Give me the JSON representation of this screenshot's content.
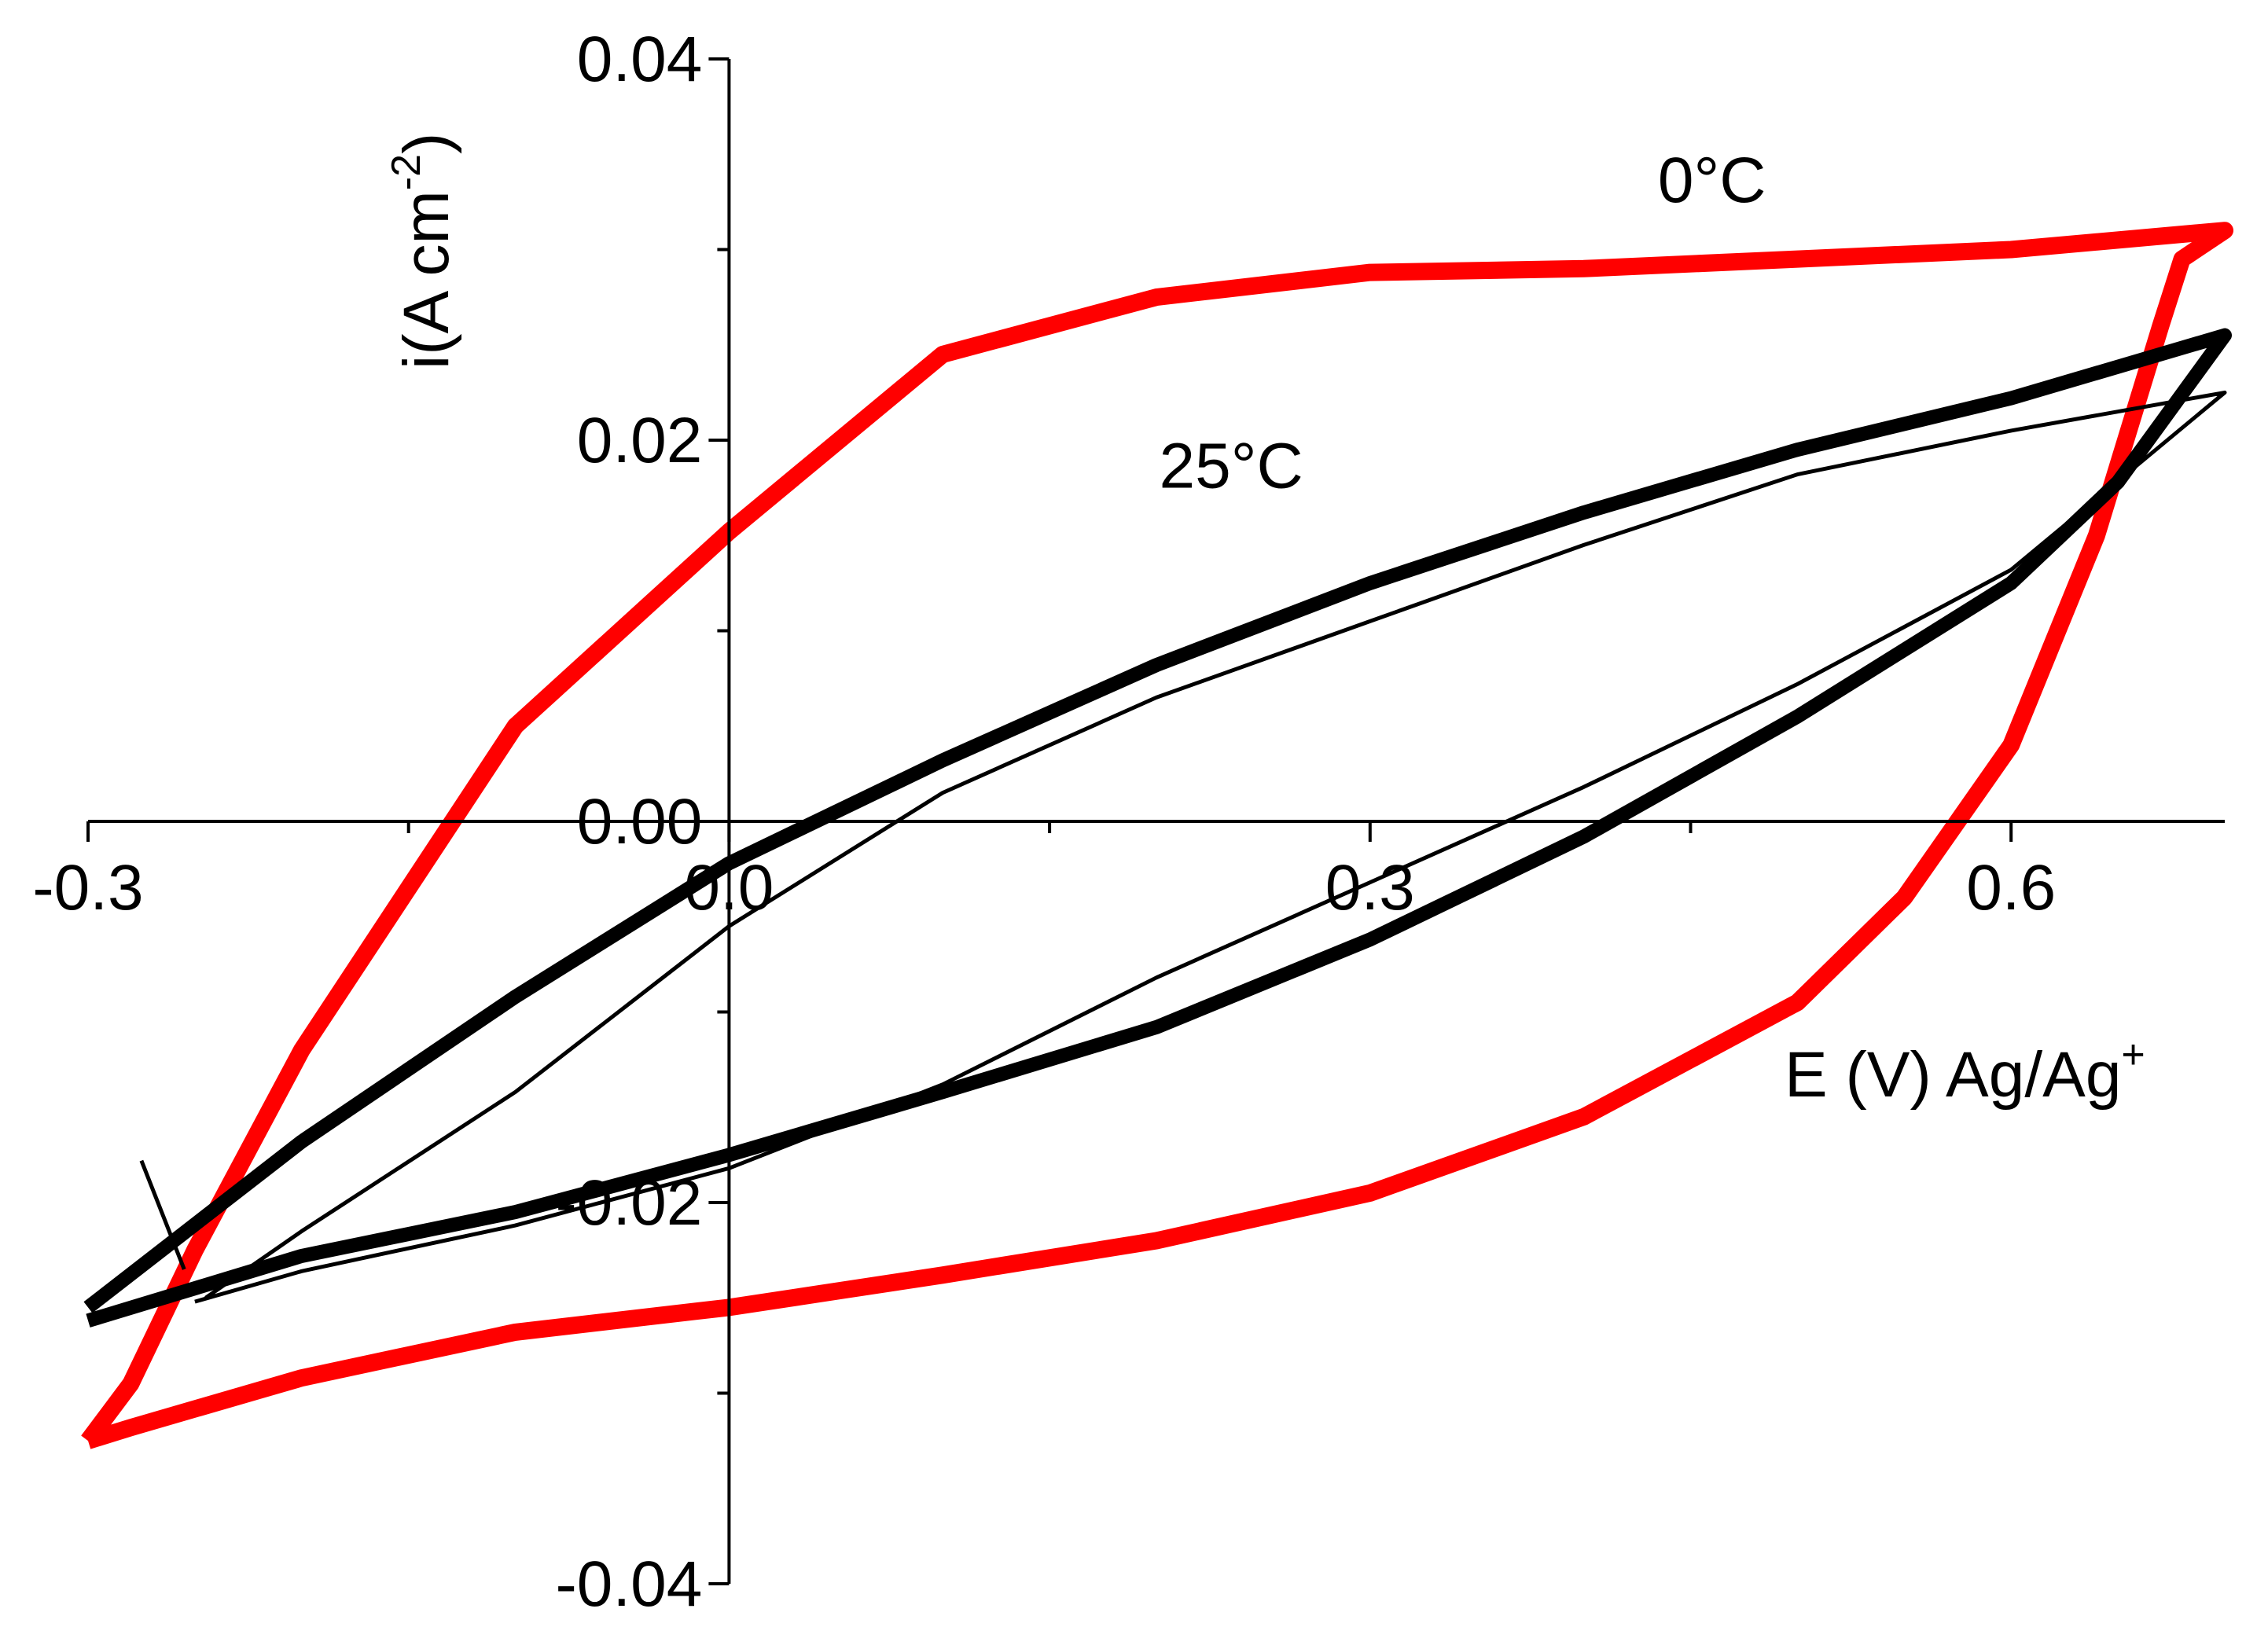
{
  "chart_data": {
    "type": "line",
    "xlabel": "E (V) Ag/Ag",
    "xlabel_sup": "+",
    "ylabel": "i(A cm",
    "ylabel_sup": "-2",
    "ylabel_close": ")",
    "xlim": [
      -0.3,
      0.7
    ],
    "ylim": [
      -0.04,
      0.04
    ],
    "xticks": [
      -0.3,
      0.0,
      0.3,
      0.6
    ],
    "xtick_labels": [
      "-0.3",
      "0.0",
      "0.3",
      "0.6"
    ],
    "yticks": [
      -0.04,
      -0.02,
      0.0,
      0.02,
      0.04
    ],
    "ytick_labels": [
      "-0.04",
      "-0.02",
      "0.00",
      "0.02",
      "0.04"
    ],
    "grid": false,
    "annotations": [
      {
        "text": "0°C",
        "x": 0.46,
        "y": 0.0325
      },
      {
        "text": "25°C",
        "x": 0.235,
        "y": 0.0175
      }
    ],
    "series": [
      {
        "color": "#ff0000",
        "width": 22,
        "points": [
          [
            -0.3,
            -0.0325
          ],
          [
            -0.28,
            -0.0318
          ],
          [
            -0.2,
            -0.0292
          ],
          [
            -0.1,
            -0.0268
          ],
          [
            0.0,
            -0.0255
          ],
          [
            0.1,
            -0.0238
          ],
          [
            0.2,
            -0.022
          ],
          [
            0.3,
            -0.0195
          ],
          [
            0.4,
            -0.0155
          ],
          [
            0.5,
            -0.0095
          ],
          [
            0.55,
            -0.004
          ],
          [
            0.6,
            0.004
          ],
          [
            0.64,
            0.015
          ],
          [
            0.67,
            0.026
          ],
          [
            0.68,
            0.0295
          ],
          [
            0.7,
            0.031
          ],
          [
            0.6,
            0.03
          ],
          [
            0.5,
            0.0295
          ],
          [
            0.4,
            0.029
          ],
          [
            0.3,
            0.0288
          ],
          [
            0.2,
            0.0275
          ],
          [
            0.1,
            0.0245
          ],
          [
            0.0,
            0.0152
          ],
          [
            -0.1,
            0.005
          ],
          [
            -0.2,
            -0.012
          ],
          [
            -0.25,
            -0.0225
          ],
          [
            -0.28,
            -0.0295
          ],
          [
            -0.3,
            -0.0325
          ]
        ]
      },
      {
        "color": "#000000",
        "width": 18,
        "points": [
          [
            -0.3,
            -0.0262
          ],
          [
            -0.25,
            -0.0245
          ],
          [
            -0.2,
            -0.0228
          ],
          [
            -0.1,
            -0.0205
          ],
          [
            0.0,
            -0.0175
          ],
          [
            0.1,
            -0.0142
          ],
          [
            0.2,
            -0.0108
          ],
          [
            0.3,
            -0.0062
          ],
          [
            0.4,
            -0.0008
          ],
          [
            0.5,
            0.0055
          ],
          [
            0.6,
            0.0125
          ],
          [
            0.65,
            0.0178
          ],
          [
            0.7,
            0.0255
          ],
          [
            0.6,
            0.0222
          ],
          [
            0.5,
            0.0195
          ],
          [
            0.4,
            0.0162
          ],
          [
            0.3,
            0.0125
          ],
          [
            0.2,
            0.0082
          ],
          [
            0.1,
            0.0032
          ],
          [
            0.0,
            -0.0022
          ],
          [
            -0.1,
            -0.0092
          ],
          [
            -0.2,
            -0.0168
          ],
          [
            -0.3,
            -0.0255
          ]
        ]
      },
      {
        "color": "#000000",
        "width": 5,
        "points": [
          [
            -0.245,
            -0.025
          ],
          [
            -0.2,
            -0.0215
          ],
          [
            -0.1,
            -0.0142
          ],
          [
            0.0,
            -0.0055
          ],
          [
            0.1,
            0.0015
          ],
          [
            0.2,
            0.0065
          ],
          [
            0.3,
            0.0105
          ],
          [
            0.4,
            0.0145
          ],
          [
            0.5,
            0.0182
          ],
          [
            0.6,
            0.0205
          ],
          [
            0.7,
            0.0225
          ],
          [
            0.6,
            0.0132
          ],
          [
            0.5,
            0.0072
          ],
          [
            0.4,
            0.0018
          ],
          [
            0.3,
            -0.0032
          ],
          [
            0.2,
            -0.0082
          ],
          [
            0.1,
            -0.0138
          ],
          [
            0.0,
            -0.0182
          ],
          [
            -0.1,
            -0.0212
          ],
          [
            -0.2,
            -0.0236
          ],
          [
            -0.25,
            -0.0252
          ]
        ]
      },
      {
        "color": "#000000",
        "width": 5,
        "points": [
          [
            -0.275,
            -0.0178
          ],
          [
            -0.255,
            -0.0235
          ]
        ]
      }
    ]
  }
}
